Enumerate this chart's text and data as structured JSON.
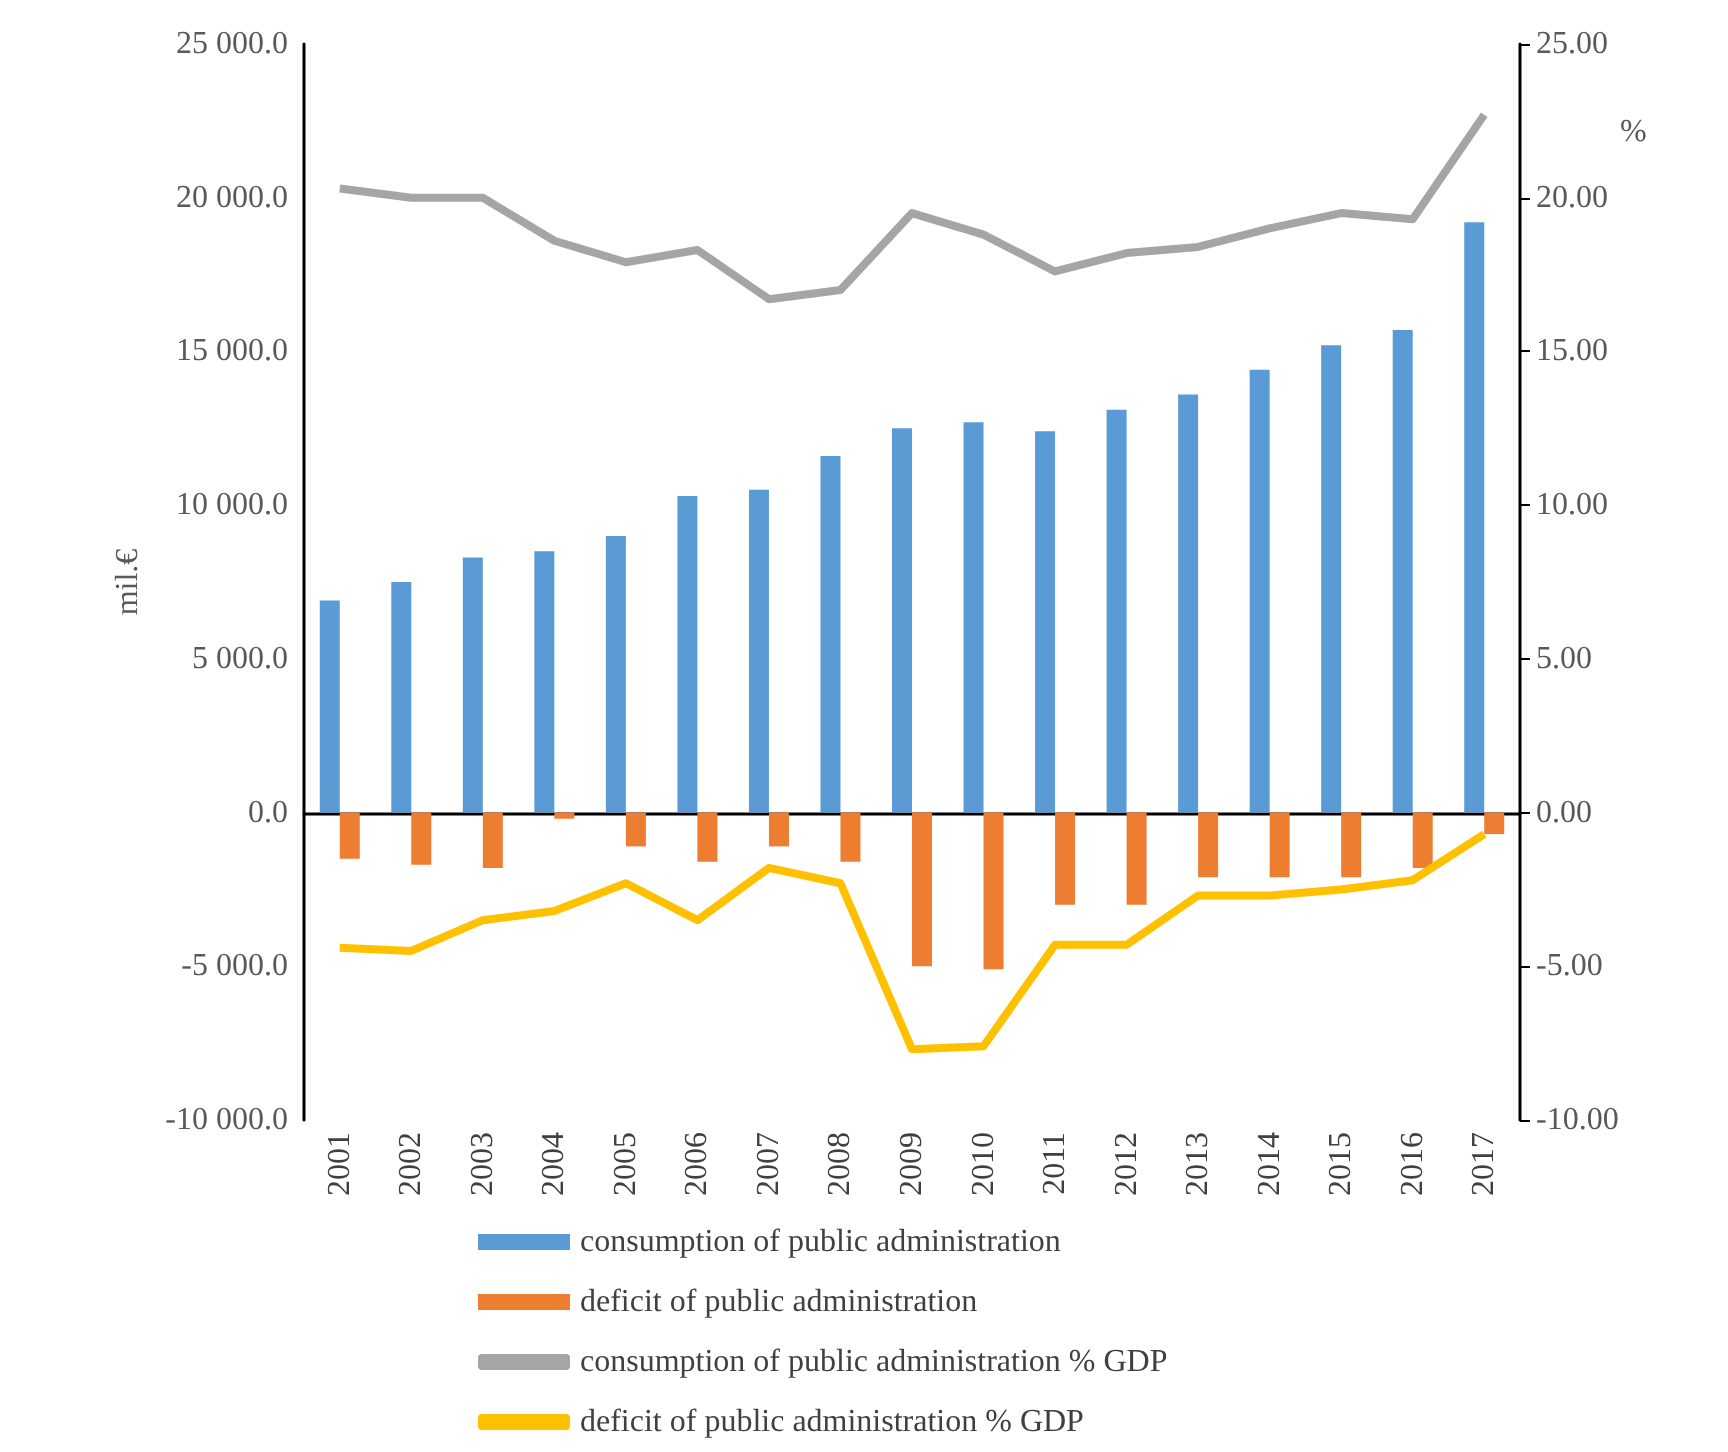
{
  "chart_data": {
    "type": "bar",
    "ylabel": "mil.€",
    "y2label": "%",
    "categories": [
      "2001",
      "2002",
      "2003",
      "2004",
      "2005",
      "2006",
      "2007",
      "2008",
      "2009",
      "2010",
      "2011",
      "2012",
      "2013",
      "2014",
      "2015",
      "2016",
      "2017"
    ],
    "series": [
      {
        "name": "consumption of public administration",
        "color": "#5b9bd5",
        "values": [
          6900,
          7500,
          8300,
          8500,
          9000,
          10300,
          10500,
          11600,
          12500,
          12700,
          12400,
          13100,
          13600,
          14400,
          15200,
          15700,
          19200
        ]
      },
      {
        "name": "deficit of public administration",
        "color": "#ed7d31",
        "values": [
          -1500,
          -1700,
          -1800,
          -200,
          -1100,
          -1600,
          -1100,
          -1600,
          -5000,
          -5100,
          -3000,
          -3000,
          -2100,
          -2100,
          -2100,
          -1800,
          -700
        ]
      },
      {
        "name": "consumption of public administration % GDP",
        "type": "line",
        "axis": "y2",
        "color": "#a5a5a5",
        "values": [
          20.3,
          20.0,
          20.0,
          18.6,
          17.9,
          18.3,
          16.7,
          17.0,
          19.5,
          18.8,
          17.6,
          18.2,
          18.4,
          19.0,
          19.5,
          19.3,
          22.7
        ]
      },
      {
        "name": "deficit of public administration % GDP",
        "type": "line",
        "axis": "y2",
        "color": "#ffc000",
        "values": [
          -4.4,
          -4.5,
          -3.5,
          -3.2,
          -2.3,
          -3.5,
          -1.8,
          -2.3,
          -7.7,
          -7.6,
          -4.3,
          -4.3,
          -2.7,
          -2.7,
          -2.5,
          -2.2,
          -0.7
        ]
      }
    ],
    "ylim": [
      -10000,
      25000
    ],
    "yticks": [
      {
        "value": -10000,
        "label": "-10 000.0"
      },
      {
        "value": -5000,
        "label": "-5 000.0"
      },
      {
        "value": 0,
        "label": "0.0"
      },
      {
        "value": 5000,
        "label": "5 000.0"
      },
      {
        "value": 10000,
        "label": "10 000.0"
      },
      {
        "value": 15000,
        "label": "15 000.0"
      },
      {
        "value": 20000,
        "label": "20 000.0"
      },
      {
        "value": 25000,
        "label": "25 000.0"
      }
    ],
    "y2lim": [
      -10,
      25
    ],
    "y2ticks": [
      {
        "value": -10,
        "label": "-10.00"
      },
      {
        "value": -5,
        "label": "-5.00"
      },
      {
        "value": 0,
        "label": "0.00"
      },
      {
        "value": 5,
        "label": "5.00"
      },
      {
        "value": 10,
        "label": "10.00"
      },
      {
        "value": 15,
        "label": "15.00"
      },
      {
        "value": 20,
        "label": "20.00"
      },
      {
        "value": 25,
        "label": "25.00"
      }
    ],
    "legend": "bottom",
    "marker": "none"
  }
}
